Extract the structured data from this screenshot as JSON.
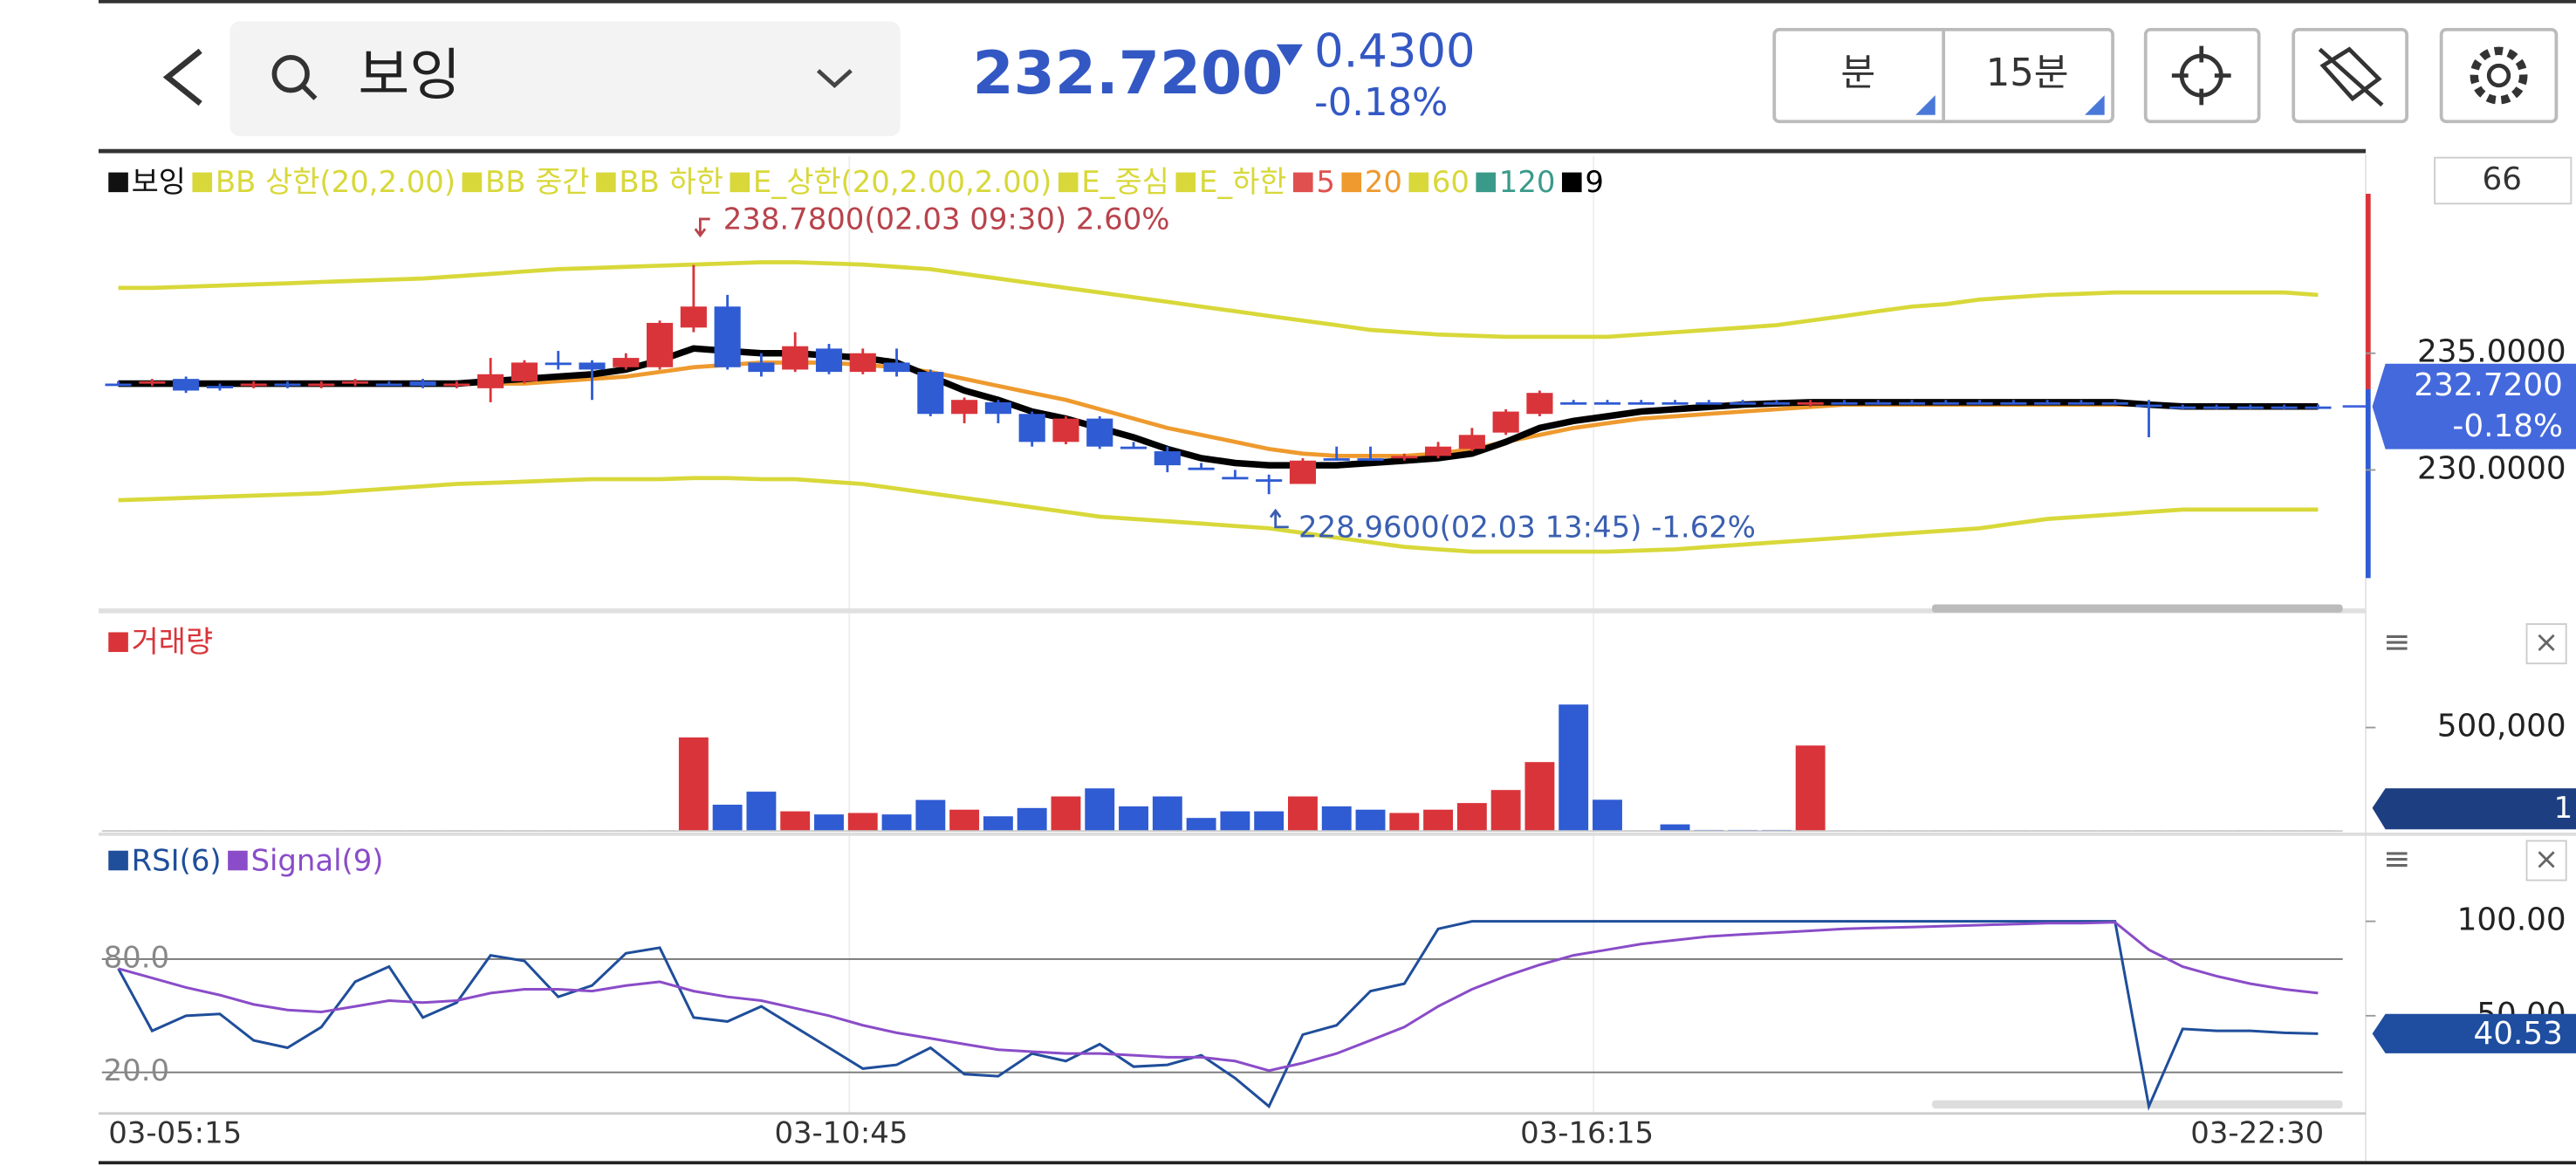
{
  "header": {
    "title": "보잉",
    "price": "232.7200",
    "change": "0.4300",
    "change_pct": "-0.18%",
    "period_unit": "분",
    "period": "15분"
  },
  "x_axis_labels": [
    "03-05:15",
    "03-10:45",
    "03-16:15",
    "03-22:30"
  ],
  "chart_data": [
    {
      "type": "candlestick",
      "legend": [
        {
          "name": "보잉",
          "color": "#111111"
        },
        {
          "name": "BB 상한(20,2.00)",
          "color": "#d8d83a"
        },
        {
          "name": "BB 중간",
          "color": "#d8d83a"
        },
        {
          "name": "BB 하한",
          "color": "#d8d83a"
        },
        {
          "name": "E_상한(20,2.00,2.00)",
          "color": "#d8d83a",
          "values": [
            237.8,
            237.8,
            237.85,
            237.9,
            237.95,
            238.0,
            238.05,
            238.1,
            238.15,
            238.2,
            238.3,
            238.4,
            238.5,
            238.6,
            238.65,
            238.7,
            238.75,
            238.8,
            238.85,
            238.9,
            238.9,
            238.85,
            238.8,
            238.7,
            238.6,
            238.4,
            238.2,
            238.0,
            237.8,
            237.6,
            237.4,
            237.2,
            237.0,
            236.8,
            236.6,
            236.4,
            236.2,
            236.0,
            235.9,
            235.8,
            235.75,
            235.7,
            235.7,
            235.7,
            235.7,
            235.8,
            235.9,
            236.0,
            236.1,
            236.2,
            236.4,
            236.6,
            236.8,
            237.0,
            237.1,
            237.3,
            237.4,
            237.5,
            237.55,
            237.6,
            237.6,
            237.6,
            237.6,
            237.6,
            237.6,
            237.5
          ]
        },
        {
          "name": "E_중심",
          "color": "#d8d83a"
        },
        {
          "name": "E_하한",
          "color": "#d8d83a",
          "values": [
            228.7,
            228.75,
            228.8,
            228.85,
            228.9,
            228.95,
            229.0,
            229.1,
            229.2,
            229.3,
            229.4,
            229.45,
            229.5,
            229.55,
            229.6,
            229.6,
            229.6,
            229.65,
            229.65,
            229.6,
            229.6,
            229.5,
            229.4,
            229.2,
            229.0,
            228.8,
            228.6,
            228.4,
            228.2,
            228.0,
            227.9,
            227.8,
            227.7,
            227.6,
            227.5,
            227.3,
            227.1,
            226.9,
            226.7,
            226.6,
            226.5,
            226.5,
            226.5,
            226.5,
            226.5,
            226.55,
            226.6,
            226.7,
            226.8,
            226.9,
            227.0,
            227.1,
            227.2,
            227.3,
            227.4,
            227.5,
            227.7,
            227.9,
            228.0,
            228.1,
            228.2,
            228.3,
            228.3,
            228.3,
            228.3,
            228.3
          ]
        },
        {
          "name": "5",
          "color": "#e0504f"
        },
        {
          "name": "20",
          "color": "#ee9a2e",
          "values": [
            233.7,
            233.7,
            233.7,
            233.7,
            233.7,
            233.7,
            233.7,
            233.7,
            233.7,
            233.7,
            233.7,
            233.7,
            233.7,
            233.8,
            233.9,
            234.0,
            234.2,
            234.4,
            234.5,
            234.6,
            234.6,
            234.6,
            234.5,
            234.4,
            234.2,
            233.9,
            233.6,
            233.3,
            233.0,
            232.6,
            232.2,
            231.8,
            231.5,
            231.2,
            230.9,
            230.7,
            230.6,
            230.6,
            230.6,
            230.7,
            230.9,
            231.2,
            231.5,
            231.8,
            232.0,
            232.2,
            232.3,
            232.4,
            232.5,
            232.6,
            232.7,
            232.8,
            232.8,
            232.8,
            232.8,
            232.8,
            232.8,
            232.8,
            232.8,
            232.8,
            232.8,
            232.75,
            232.75,
            232.75,
            232.75,
            232.75
          ]
        },
        {
          "name": "60",
          "color": "#d8d83a"
        },
        {
          "name": "120",
          "color": "#3a9a8a"
        },
        {
          "name": "9",
          "color": "#000000",
          "values": [
            233.7,
            233.7,
            233.7,
            233.7,
            233.7,
            233.7,
            233.7,
            233.7,
            233.7,
            233.7,
            233.7,
            233.8,
            233.9,
            234.0,
            234.1,
            234.3,
            234.7,
            235.2,
            235.1,
            235.0,
            235.0,
            234.9,
            234.8,
            234.6,
            234.0,
            233.4,
            233.0,
            232.5,
            232.2,
            231.8,
            231.4,
            230.9,
            230.5,
            230.3,
            230.2,
            230.2,
            230.2,
            230.3,
            230.4,
            230.5,
            230.7,
            231.2,
            231.8,
            232.1,
            232.3,
            232.5,
            232.6,
            232.7,
            232.8,
            232.85,
            232.9,
            232.9,
            232.9,
            232.9,
            232.9,
            232.9,
            232.9,
            232.9,
            232.9,
            232.9,
            232.8,
            232.72,
            232.72,
            232.72,
            232.72,
            232.72
          ]
        }
      ],
      "open": [
        233.7,
        233.7,
        233.9,
        233.6,
        233.6,
        233.7,
        233.6,
        233.7,
        233.7,
        233.8,
        233.6,
        233.5,
        233.8,
        234.6,
        234.6,
        234.4,
        234.4,
        236.1,
        237.0,
        234.6,
        234.3,
        235.2,
        234.2,
        234.6,
        234.2,
        232.4,
        232.9,
        232.4,
        231.2,
        232.2,
        231.0,
        230.8,
        230.1,
        229.7,
        229.6,
        229.4,
        230.5,
        230.5,
        230.5,
        230.6,
        230.9,
        231.6,
        232.4,
        232.9,
        232.9,
        232.9,
        232.9,
        232.9,
        232.9,
        232.9,
        232.8,
        232.9,
        232.9,
        232.9,
        232.9,
        232.9,
        232.9,
        232.9,
        232.9,
        232.9,
        232.8,
        232.72,
        232.72,
        232.72,
        232.72,
        232.72
      ],
      "high": [
        233.8,
        233.9,
        234.0,
        233.7,
        233.8,
        233.8,
        233.8,
        233.9,
        233.8,
        233.9,
        233.8,
        234.8,
        234.7,
        235.1,
        234.7,
        235.0,
        236.4,
        238.78,
        237.5,
        235.0,
        235.9,
        235.4,
        235.2,
        235.2,
        234.3,
        233.1,
        233.0,
        232.5,
        232.3,
        232.3,
        231.2,
        231.0,
        230.3,
        230.0,
        229.8,
        230.5,
        231.0,
        231.0,
        230.7,
        231.2,
        231.8,
        232.6,
        233.4,
        233.0,
        233.0,
        233.0,
        233.0,
        233.0,
        233.0,
        233.0,
        233.0,
        233.0,
        233.0,
        233.0,
        233.0,
        233.0,
        233.0,
        233.0,
        233.0,
        233.0,
        233.0,
        232.8,
        232.8,
        232.8,
        232.8,
        232.8
      ],
      "low": [
        233.6,
        233.6,
        233.3,
        233.4,
        233.5,
        233.5,
        233.5,
        233.6,
        233.6,
        233.5,
        233.5,
        232.9,
        233.7,
        234.3,
        233.0,
        234.3,
        234.3,
        235.9,
        234.3,
        234.0,
        234.2,
        234.1,
        234.1,
        234.0,
        232.3,
        232.0,
        232.0,
        231.0,
        231.1,
        230.9,
        230.9,
        229.9,
        230.0,
        229.6,
        228.96,
        229.4,
        230.4,
        230.4,
        230.4,
        230.5,
        230.8,
        231.5,
        232.3,
        232.8,
        232.8,
        232.8,
        232.8,
        232.8,
        232.8,
        232.8,
        232.7,
        232.8,
        232.8,
        232.8,
        232.8,
        232.8,
        232.8,
        232.8,
        232.8,
        232.8,
        231.4,
        232.6,
        232.6,
        232.6,
        232.6,
        232.6
      ],
      "close": [
        233.7,
        233.8,
        233.4,
        233.5,
        233.7,
        233.6,
        233.7,
        233.8,
        233.7,
        233.6,
        233.7,
        234.1,
        234.6,
        234.6,
        234.3,
        234.8,
        236.3,
        237.0,
        234.4,
        234.2,
        235.3,
        234.2,
        235.0,
        234.2,
        232.4,
        233.0,
        232.4,
        231.2,
        232.2,
        231.0,
        231.0,
        230.2,
        230.1,
        229.7,
        229.5,
        230.4,
        230.5,
        230.5,
        230.6,
        231.0,
        231.5,
        232.5,
        233.3,
        232.9,
        232.9,
        232.9,
        232.9,
        232.9,
        232.9,
        232.9,
        232.9,
        232.9,
        232.9,
        232.9,
        232.9,
        232.9,
        232.9,
        232.9,
        232.9,
        232.9,
        232.7,
        232.72,
        232.72,
        232.72,
        232.72,
        232.72
      ],
      "up_color": "#d9343a",
      "down_color": "#2f5bd3",
      "ylim": [
        224.1,
        243.45
      ],
      "yticks": [
        {
          "value": 235,
          "label": "235.0000"
        },
        {
          "value": 230,
          "label": "230.0000"
        }
      ],
      "high_note": "238.7800(02.03 09:30) 2.60%",
      "low_note": "228.9600(02.03 13:45) -1.62%",
      "top_box": "66"
    },
    {
      "type": "bar",
      "legend": [
        {
          "name": "거래량",
          "color": "#d9343a"
        }
      ],
      "values": [
        3000,
        3000,
        3000,
        3000,
        3000,
        3000,
        3000,
        3000,
        3000,
        3000,
        3000,
        3000,
        3000,
        3000,
        3000,
        3000,
        3000,
        452000,
        127000,
        190000,
        95000,
        80000,
        87000,
        80000,
        150000,
        103000,
        71000,
        111000,
        167000,
        206000,
        119000,
        167000,
        63000,
        95000,
        95000,
        167000,
        119000,
        103000,
        87000,
        103000,
        135000,
        198000,
        333000,
        611000,
        151000,
        3000,
        32000,
        5000,
        5000,
        5000,
        413000,
        3000,
        3000,
        3000,
        3000,
        3000,
        3000,
        3000,
        3000,
        3000,
        3000,
        3000,
        3000,
        3000,
        3000,
        3000
      ],
      "ylim": [
        0,
        1000000
      ],
      "yticks": [
        {
          "value": 500000,
          "label": "500,000"
        }
      ],
      "current_box": "1"
    },
    {
      "type": "line",
      "series": [
        {
          "name": "RSI(6)",
          "color": "#1f4e9a",
          "values": [
            75,
            42,
            50,
            51,
            37,
            33,
            44,
            68,
            76,
            49,
            57,
            82,
            79,
            60,
            66,
            83,
            86,
            49,
            47,
            55,
            44,
            33,
            22,
            24,
            33,
            19,
            18,
            30,
            26,
            35,
            23,
            24,
            29,
            17,
            2,
            40,
            45,
            63,
            67,
            96,
            100,
            100,
            100,
            100,
            100,
            100,
            100,
            100,
            100,
            100,
            100,
            100,
            100,
            100,
            100,
            100,
            100,
            100,
            100,
            100,
            2,
            43,
            42,
            42,
            41,
            40.53
          ]
        },
        {
          "name": "Signal(9)",
          "color": "#8a4cc8",
          "values": [
            75,
            70,
            65,
            61,
            56,
            53,
            52,
            55,
            58,
            57,
            58,
            62,
            64,
            64,
            63,
            66,
            68,
            63,
            60,
            58,
            54,
            50,
            45,
            41,
            38,
            35,
            32,
            31,
            30,
            30,
            29,
            28,
            28,
            26,
            21,
            25,
            30,
            37,
            44,
            55,
            64,
            71,
            77,
            82,
            85,
            88,
            90,
            92,
            93,
            94,
            95,
            96,
            96.5,
            97,
            97.5,
            98,
            98.5,
            99,
            99,
            99.5,
            85,
            76,
            71,
            67,
            64,
            62
          ]
        }
      ],
      "ylim": [
        0,
        140
      ],
      "yticks": [
        {
          "value": 80,
          "label": "80.0"
        },
        {
          "value": 20,
          "label": "20.0"
        }
      ],
      "yticks_right": [
        {
          "value": 100,
          "label": "100.00"
        },
        {
          "value": 50,
          "label": "50.00"
        }
      ]
    }
  ]
}
